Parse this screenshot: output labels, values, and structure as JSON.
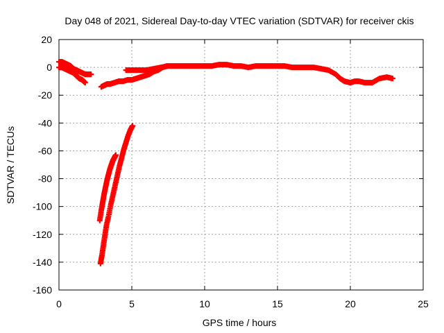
{
  "chart_data": {
    "type": "scatter",
    "title": "Day 048 of 2021, Sidereal Day-to-day VTEC variation (SDTVAR) for receiver ckis",
    "xlabel": "GPS time / hours",
    "ylabel": "SDTVAR / TECUs",
    "xlim": [
      0,
      25
    ],
    "ylim": [
      -160,
      20
    ],
    "xticks": [
      0,
      5,
      10,
      15,
      20,
      25
    ],
    "yticks": [
      20,
      0,
      -20,
      -40,
      -60,
      -80,
      -100,
      -120,
      -140,
      -160
    ],
    "grid": true,
    "marker": "plus",
    "color": "#ff0000",
    "series": [
      {
        "x": [
          0.0,
          0.2,
          0.4,
          0.6,
          0.8,
          1.0,
          1.2,
          1.4,
          1.6,
          1.8,
          2.0,
          2.2
        ],
        "y": [
          4,
          4,
          3,
          2,
          1,
          -1,
          -2,
          -3,
          -4,
          -5,
          -5,
          -5
        ]
      },
      {
        "x": [
          0.0,
          0.2,
          0.4,
          0.6,
          0.8,
          1.0,
          1.2,
          1.4,
          1.6,
          1.8
        ],
        "y": [
          0,
          0,
          -1,
          -2,
          -3,
          -4,
          -6,
          -8,
          -9,
          -11
        ]
      },
      {
        "x": [
          2.9,
          3.1,
          3.3,
          3.5,
          3.8,
          4.1,
          4.4,
          4.7,
          5.0,
          5.3,
          5.6,
          5.9,
          6.2,
          6.5,
          6.8,
          7.1,
          7.4
        ],
        "y": [
          -14,
          -13,
          -12,
          -12,
          -11,
          -10,
          -10,
          -9,
          -9,
          -8,
          -7,
          -6,
          -5,
          -3,
          -2,
          0,
          1
        ]
      },
      {
        "x": [
          4.6,
          5.0,
          5.5,
          6.0,
          6.5,
          7.0,
          7.5,
          8.0,
          8.5,
          9.0,
          9.5,
          10.0,
          10.5,
          11.0,
          11.5,
          12.0,
          12.5,
          13.0,
          13.5,
          14.0,
          14.5,
          15.0,
          15.5,
          16.0,
          16.5,
          17.0,
          17.5,
          18.0,
          18.5,
          19.0,
          19.3,
          19.6,
          20.0,
          20.3,
          20.6,
          21.0,
          21.5,
          22.0,
          22.5,
          22.9
        ],
        "y": [
          -2,
          -2,
          -2,
          -2,
          -1,
          0,
          1,
          1,
          1,
          1,
          1,
          1,
          1,
          2,
          2,
          1,
          1,
          0,
          1,
          1,
          1,
          1,
          1,
          0,
          0,
          0,
          0,
          -1,
          -2,
          -5,
          -8,
          -10,
          -11,
          -10,
          -10,
          -11,
          -11,
          -8,
          -7,
          -8
        ]
      },
      {
        "x": [
          2.8,
          2.9,
          3.0,
          3.1,
          3.2,
          3.3,
          3.4,
          3.5,
          3.6,
          3.7,
          3.8,
          3.9
        ],
        "y": [
          -110,
          -103,
          -97,
          -91,
          -86,
          -81,
          -77,
          -73,
          -70,
          -67,
          -65,
          -63
        ]
      },
      {
        "x": [
          2.85,
          2.95,
          3.05,
          3.15,
          3.25,
          3.4,
          3.55,
          3.7,
          3.85,
          4.0,
          4.15,
          4.3,
          4.45,
          4.6,
          4.75,
          4.9,
          5.05
        ],
        "y": [
          -141,
          -135,
          -128,
          -121,
          -114,
          -107,
          -99,
          -92,
          -85,
          -78,
          -71,
          -65,
          -59,
          -54,
          -49,
          -45,
          -42
        ]
      }
    ]
  }
}
